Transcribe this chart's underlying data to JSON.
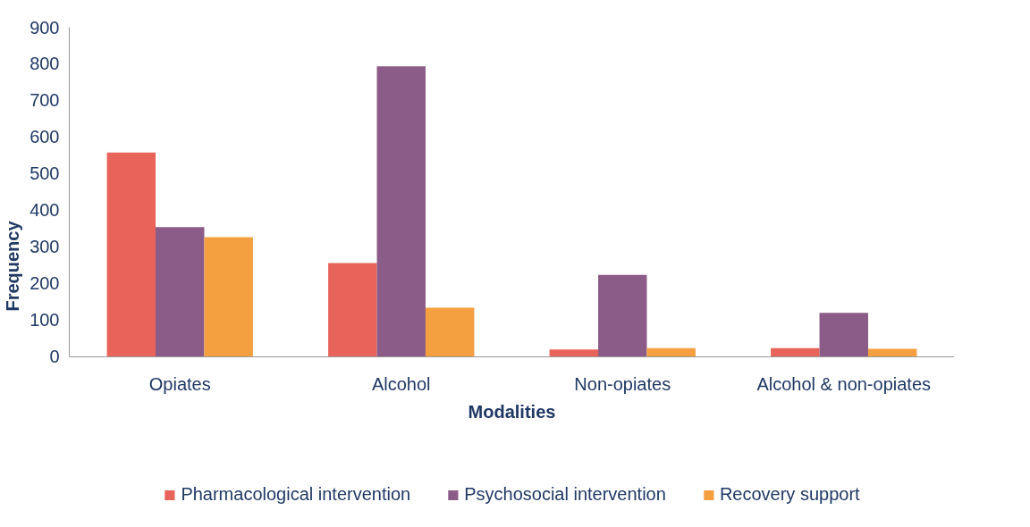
{
  "chart_data": {
    "type": "bar",
    "xlabel": "Modalities",
    "ylabel": "Frequency",
    "categories": [
      "Opiates",
      "Alcohol",
      "Non-opiates",
      "Alcohol & non-opiates"
    ],
    "series": [
      {
        "name": "Pharmacological intervention",
        "color": "#e8645a",
        "values": [
          558,
          256,
          20,
          24
        ]
      },
      {
        "name": "Psychosocial intervention",
        "color": "#8b5c87",
        "values": [
          354,
          793,
          224,
          120
        ]
      },
      {
        "name": "Recovery support",
        "color": "#f4a040",
        "values": [
          327,
          134,
          24,
          22
        ]
      }
    ],
    "ylim": [
      0,
      900
    ],
    "yticks": [
      0,
      100,
      200,
      300,
      400,
      500,
      600,
      700,
      800,
      900
    ],
    "grid": false,
    "legend": "bottom"
  }
}
